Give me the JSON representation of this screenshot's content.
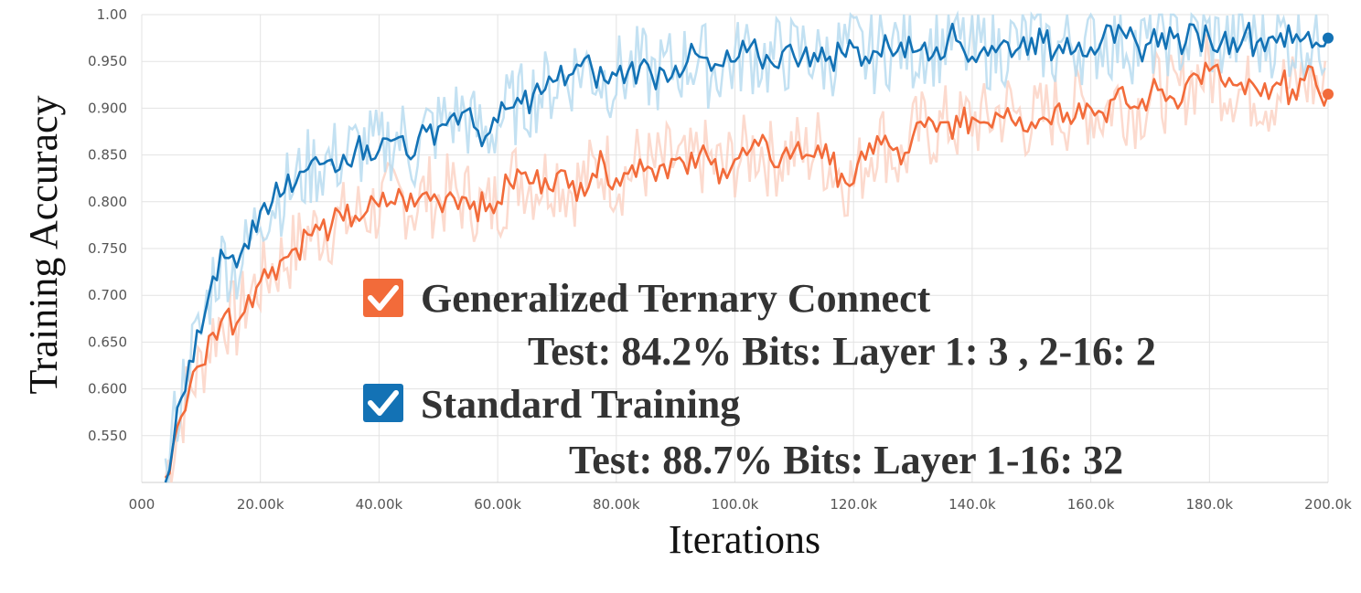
{
  "chart_data": {
    "type": "line",
    "xlabel": "Iterations",
    "ylabel": "Training Accuracy",
    "xlim": [
      0,
      200000
    ],
    "ylim": [
      0.5,
      1.0
    ],
    "grid": true,
    "x_ticks": [
      {
        "value": 0,
        "label": "000"
      },
      {
        "value": 20000,
        "label": "20.00k"
      },
      {
        "value": 40000,
        "label": "40.00k"
      },
      {
        "value": 60000,
        "label": "60.00k"
      },
      {
        "value": 80000,
        "label": "80.00k"
      },
      {
        "value": 100000,
        "label": "100.0k"
      },
      {
        "value": 120000,
        "label": "120.0k"
      },
      {
        "value": 140000,
        "label": "140.0k"
      },
      {
        "value": 160000,
        "label": "160.0k"
      },
      {
        "value": 180000,
        "label": "180.0k"
      },
      {
        "value": 200000,
        "label": "200.0k"
      }
    ],
    "y_ticks": [
      {
        "value": 1.0,
        "label": "1.00"
      },
      {
        "value": 0.95,
        "label": "0.950"
      },
      {
        "value": 0.9,
        "label": "0.900"
      },
      {
        "value": 0.85,
        "label": "0.850"
      },
      {
        "value": 0.8,
        "label": "0.800"
      },
      {
        "value": 0.75,
        "label": "0.750"
      },
      {
        "value": 0.7,
        "label": "0.700"
      },
      {
        "value": 0.65,
        "label": "0.650"
      },
      {
        "value": 0.6,
        "label": "0.600"
      },
      {
        "value": 0.55,
        "label": "0.550"
      }
    ],
    "legend_placement": "center",
    "series": [
      {
        "name": "Generalized Ternary Connect",
        "note": "Test: 84.2% Bits: Layer 1: 3 , 2-16: 2",
        "color": "#f26b3a",
        "raw_color": "#fbd3c6",
        "end_marker": true,
        "x": [
          4000,
          6000,
          8000,
          10000,
          12000,
          14000,
          16000,
          18000,
          20000,
          22000,
          24000,
          26000,
          28000,
          30000,
          32000,
          34000,
          36000,
          38000,
          40000,
          42000,
          44000,
          46000,
          48000,
          50000,
          52000,
          54000,
          56000,
          58000,
          60000,
          62000,
          64000,
          66000,
          68000,
          70000,
          72000,
          74000,
          76000,
          78000,
          80000,
          82000,
          84000,
          86000,
          88000,
          90000,
          92000,
          94000,
          96000,
          98000,
          100000,
          102000,
          104000,
          106000,
          108000,
          110000,
          112000,
          114000,
          116000,
          118000,
          120000,
          122000,
          124000,
          126000,
          128000,
          130000,
          132000,
          134000,
          136000,
          138000,
          140000,
          142000,
          144000,
          146000,
          148000,
          150000,
          152000,
          154000,
          156000,
          158000,
          160000,
          162000,
          164000,
          166000,
          168000,
          170000,
          172000,
          174000,
          176000,
          178000,
          180000,
          182000,
          184000,
          186000,
          188000,
          190000,
          192000,
          194000,
          196000,
          198000,
          200000
        ],
        "y": [
          0.505,
          0.56,
          0.6,
          0.625,
          0.66,
          0.68,
          0.67,
          0.7,
          0.715,
          0.73,
          0.74,
          0.75,
          0.765,
          0.77,
          0.775,
          0.78,
          0.785,
          0.79,
          0.795,
          0.8,
          0.805,
          0.795,
          0.81,
          0.8,
          0.81,
          0.805,
          0.8,
          0.79,
          0.8,
          0.82,
          0.83,
          0.82,
          0.825,
          0.83,
          0.815,
          0.82,
          0.83,
          0.84,
          0.825,
          0.83,
          0.845,
          0.835,
          0.84,
          0.845,
          0.83,
          0.85,
          0.84,
          0.835,
          0.845,
          0.85,
          0.86,
          0.845,
          0.85,
          0.855,
          0.85,
          0.86,
          0.84,
          0.83,
          0.82,
          0.845,
          0.87,
          0.86,
          0.84,
          0.87,
          0.88,
          0.875,
          0.885,
          0.88,
          0.89,
          0.885,
          0.895,
          0.9,
          0.89,
          0.885,
          0.89,
          0.9,
          0.895,
          0.905,
          0.9,
          0.895,
          0.91,
          0.905,
          0.9,
          0.915,
          0.92,
          0.91,
          0.925,
          0.935,
          0.94,
          0.93,
          0.925,
          0.915,
          0.92,
          0.91,
          0.925,
          0.92,
          0.93,
          0.925,
          0.915
        ],
        "end_value": 0.915
      },
      {
        "name": "Standard Training",
        "note": "Test: 88.7% Bits: Layer 1-16: 32",
        "color": "#1372b5",
        "raw_color": "#b9dcf0",
        "end_marker": true,
        "x": [
          4000,
          6000,
          8000,
          10000,
          12000,
          14000,
          16000,
          18000,
          20000,
          22000,
          24000,
          26000,
          28000,
          30000,
          32000,
          34000,
          36000,
          38000,
          40000,
          42000,
          44000,
          46000,
          48000,
          50000,
          52000,
          54000,
          56000,
          58000,
          60000,
          62000,
          64000,
          66000,
          68000,
          70000,
          72000,
          74000,
          76000,
          78000,
          80000,
          82000,
          84000,
          86000,
          88000,
          90000,
          92000,
          94000,
          96000,
          98000,
          100000,
          102000,
          104000,
          106000,
          108000,
          110000,
          112000,
          114000,
          116000,
          118000,
          120000,
          122000,
          124000,
          126000,
          128000,
          130000,
          132000,
          134000,
          136000,
          138000,
          140000,
          142000,
          144000,
          146000,
          148000,
          150000,
          152000,
          154000,
          156000,
          158000,
          160000,
          162000,
          164000,
          166000,
          168000,
          170000,
          172000,
          174000,
          176000,
          178000,
          180000,
          182000,
          184000,
          186000,
          188000,
          190000,
          192000,
          194000,
          196000,
          198000,
          200000
        ],
        "y": [
          0.5,
          0.58,
          0.63,
          0.66,
          0.72,
          0.74,
          0.73,
          0.75,
          0.79,
          0.8,
          0.81,
          0.82,
          0.835,
          0.84,
          0.845,
          0.85,
          0.855,
          0.86,
          0.855,
          0.865,
          0.87,
          0.85,
          0.875,
          0.88,
          0.89,
          0.895,
          0.88,
          0.87,
          0.885,
          0.9,
          0.905,
          0.915,
          0.92,
          0.93,
          0.935,
          0.945,
          0.94,
          0.93,
          0.935,
          0.94,
          0.945,
          0.935,
          0.94,
          0.945,
          0.95,
          0.955,
          0.94,
          0.945,
          0.95,
          0.96,
          0.955,
          0.95,
          0.96,
          0.955,
          0.965,
          0.95,
          0.955,
          0.96,
          0.965,
          0.955,
          0.96,
          0.965,
          0.97,
          0.96,
          0.97,
          0.965,
          0.975,
          0.97,
          0.955,
          0.965,
          0.96,
          0.97,
          0.965,
          0.975,
          0.97,
          0.96,
          0.975,
          0.97,
          0.965,
          0.975,
          0.97,
          0.975,
          0.965,
          0.97,
          0.98,
          0.975,
          0.97,
          0.98,
          0.975,
          0.97,
          0.975,
          0.98,
          0.97,
          0.975,
          0.98,
          0.97,
          0.975,
          0.97,
          0.975
        ],
        "end_value": 0.975
      }
    ]
  }
}
